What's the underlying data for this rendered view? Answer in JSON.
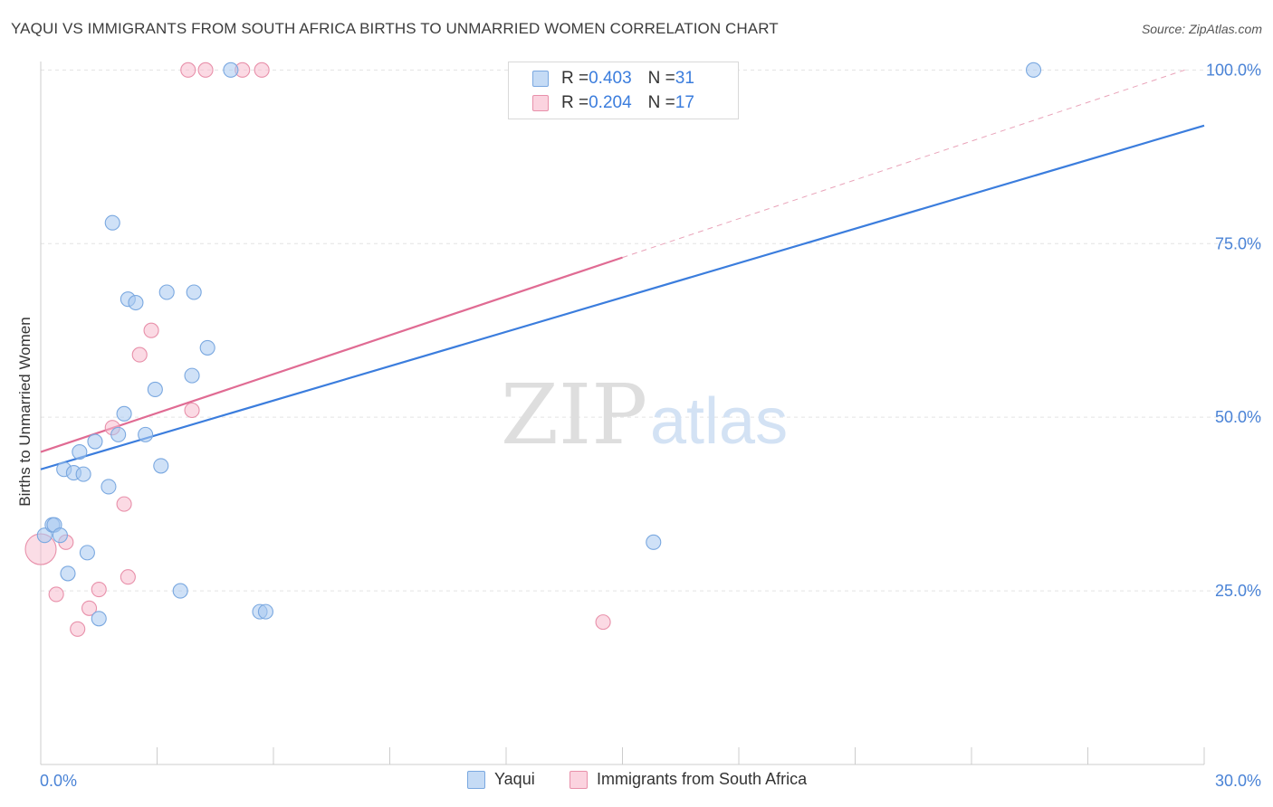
{
  "header": {
    "title": "YAQUI VS IMMIGRANTS FROM SOUTH AFRICA BIRTHS TO UNMARRIED WOMEN CORRELATION CHART",
    "source": "Source: ZipAtlas.com"
  },
  "watermark": {
    "zip": "ZIP",
    "atlas": "atlas"
  },
  "legend_stats": [
    {
      "r_label": "R = ",
      "r_value": "0.403",
      "n_label": "N = ",
      "n_value": "31",
      "color": "#a8c8f0"
    },
    {
      "r_label": "R = ",
      "r_value": "0.204",
      "n_label": "N = ",
      "n_value": "17",
      "color": "#f7bccd"
    }
  ],
  "chart_data": {
    "type": "scatter",
    "title": "YAQUI VS IMMIGRANTS FROM SOUTH AFRICA BIRTHS TO UNMARRIED WOMEN CORRELATION CHART",
    "xlabel": "",
    "ylabel": "Births to Unmarried Women",
    "xlim": [
      0,
      30
    ],
    "ylim": [
      0,
      102
    ],
    "x_tick_labels": [
      "0.0%",
      "30.0%"
    ],
    "y_ticks": [
      25,
      50,
      75,
      100
    ],
    "y_tick_labels": [
      "25.0%",
      "50.0%",
      "75.0%",
      "100.0%"
    ],
    "grid": true,
    "series": [
      {
        "name": "Yaqui",
        "color": "#3b7ddd",
        "fill": "#a8c8f0",
        "points": [
          [
            0.1,
            33.0
          ],
          [
            0.3,
            34.5
          ],
          [
            0.35,
            34.5
          ],
          [
            0.5,
            33.0
          ],
          [
            0.6,
            42.5
          ],
          [
            0.7,
            27.5
          ],
          [
            0.85,
            42.0
          ],
          [
            1.0,
            45.0
          ],
          [
            1.1,
            41.8
          ],
          [
            1.2,
            30.5
          ],
          [
            1.4,
            46.5
          ],
          [
            1.5,
            21.0
          ],
          [
            1.75,
            40.0
          ],
          [
            1.85,
            78.0
          ],
          [
            2.0,
            47.5
          ],
          [
            2.15,
            50.5
          ],
          [
            2.25,
            67.0
          ],
          [
            2.45,
            66.5
          ],
          [
            2.7,
            47.5
          ],
          [
            2.95,
            54.0
          ],
          [
            3.1,
            43.0
          ],
          [
            3.25,
            68.0
          ],
          [
            3.6,
            25.0
          ],
          [
            3.9,
            56.0
          ],
          [
            3.95,
            68.0
          ],
          [
            4.3,
            60.0
          ],
          [
            4.9,
            100.0
          ],
          [
            5.65,
            22.0
          ],
          [
            5.8,
            22.0
          ],
          [
            15.8,
            32.0
          ],
          [
            25.6,
            100.0
          ]
        ],
        "trend": {
          "x": [
            0,
            30
          ],
          "y": [
            42.5,
            92.0
          ]
        }
      },
      {
        "name": "Immigrants from South Africa",
        "color": "#e06b93",
        "fill": "#f7bccd",
        "points": [
          [
            0.0,
            31.0
          ],
          [
            0.4,
            24.5
          ],
          [
            0.65,
            32.0
          ],
          [
            0.95,
            19.5
          ],
          [
            1.25,
            22.5
          ],
          [
            1.5,
            25.2
          ],
          [
            1.85,
            48.5
          ],
          [
            2.15,
            37.5
          ],
          [
            2.25,
            27.0
          ],
          [
            2.55,
            59.0
          ],
          [
            2.85,
            62.5
          ],
          [
            3.8,
            100.0
          ],
          [
            3.9,
            51.0
          ],
          [
            4.25,
            100.0
          ],
          [
            5.2,
            100.0
          ],
          [
            5.7,
            100.0
          ],
          [
            14.5,
            20.5
          ]
        ],
        "trend": {
          "x": [
            0,
            15
          ],
          "y": [
            45.0,
            73.0
          ]
        },
        "trend_extension": {
          "x": [
            15,
            29.5
          ],
          "y": [
            73.0,
            100.0
          ]
        }
      }
    ]
  },
  "bottom_legend": [
    {
      "label": "Yaqui",
      "color": "#a8c8f0",
      "border": "#7aa8e0"
    },
    {
      "label": "Immigrants from South Africa",
      "color": "#f7bccd",
      "border": "#e890aa"
    }
  ]
}
